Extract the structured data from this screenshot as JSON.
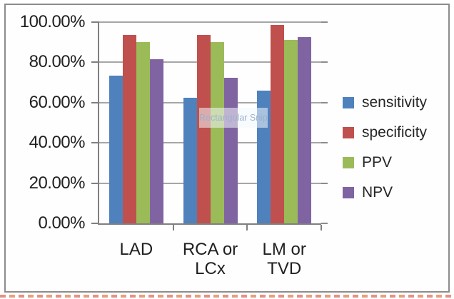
{
  "overlay": {
    "watermark": "Rectangular Snip"
  },
  "colors": {
    "sensitivity": "#4F81BD",
    "specificity": "#C0504D",
    "ppv": "#9BBB59",
    "npv": "#8064A2",
    "gridline": "#A6A6A6",
    "axis": "#7F7F7F",
    "frame_border": "#8C8C8C",
    "dashed_underline": "#E59184"
  },
  "chart_data": {
    "type": "bar",
    "title": "",
    "xlabel": "",
    "ylabel": "",
    "categories": [
      "LAD",
      "RCA or LCx",
      "LM or TVD"
    ],
    "category_lines": [
      [
        "LAD"
      ],
      [
        "RCA or",
        "LCx"
      ],
      [
        "LM or",
        "TVD"
      ]
    ],
    "series": [
      {
        "name": "sensitivity",
        "color": "#4F81BD",
        "values": [
          73.5,
          62.5,
          66.0
        ]
      },
      {
        "name": "specificity",
        "color": "#C0504D",
        "values": [
          93.5,
          93.5,
          98.5
        ]
      },
      {
        "name": "PPV",
        "color": "#9BBB59",
        "values": [
          90.0,
          90.0,
          91.0
        ]
      },
      {
        "name": "NPV",
        "color": "#8064A2",
        "values": [
          81.5,
          72.5,
          92.5
        ]
      }
    ],
    "ylim": [
      0,
      100
    ],
    "ytick_step": 20,
    "ytick_labels": [
      "0.00%",
      "20.00%",
      "40.00%",
      "60.00%",
      "80.00%",
      "100.00%"
    ],
    "grid": true,
    "legend_position": "right"
  }
}
